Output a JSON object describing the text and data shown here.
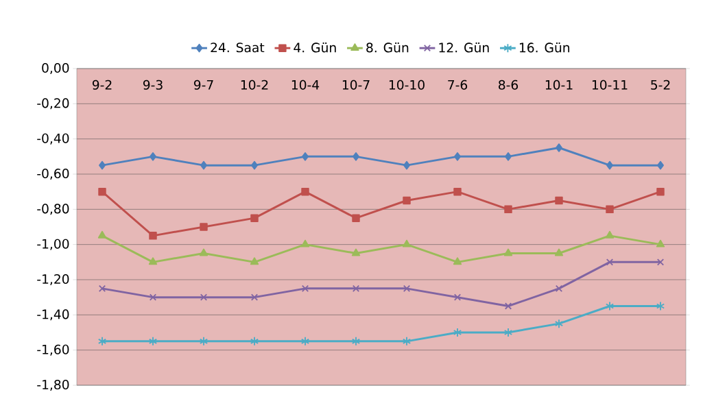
{
  "chart_data": {
    "type": "line",
    "categories": [
      "9-2",
      "9-3",
      "9-7",
      "10-2",
      "10-4",
      "10-7",
      "10-10",
      "7-6",
      "8-6",
      "10-1",
      "10-11",
      "5-2"
    ],
    "series": [
      {
        "name": "24. Saat",
        "color": "#4f81bd",
        "marker": "diamond",
        "values": [
          -0.55,
          -0.5,
          -0.55,
          -0.55,
          -0.5,
          -0.5,
          -0.55,
          -0.5,
          -0.5,
          -0.45,
          -0.55,
          -0.55
        ]
      },
      {
        "name": "4. Gün",
        "color": "#c0504d",
        "marker": "square",
        "values": [
          -0.7,
          -0.95,
          -0.9,
          -0.85,
          -0.7,
          -0.85,
          -0.75,
          -0.7,
          -0.8,
          -0.75,
          -0.8,
          -0.7
        ]
      },
      {
        "name": "8. Gün",
        "color": "#9bbb59",
        "marker": "triangle",
        "values": [
          -0.95,
          -1.1,
          -1.05,
          -1.1,
          -1.0,
          -1.05,
          -1.0,
          -1.1,
          -1.05,
          -1.05,
          -0.95,
          -1.0
        ]
      },
      {
        "name": "12. Gün",
        "color": "#8064a2",
        "marker": "cross",
        "values": [
          -1.25,
          -1.3,
          -1.3,
          -1.3,
          -1.25,
          -1.25,
          -1.25,
          -1.3,
          -1.35,
          -1.25,
          -1.1,
          -1.1
        ]
      },
      {
        "name": "16. Gün",
        "color": "#4bacc6",
        "marker": "cross",
        "values": [
          -1.55,
          -1.55,
          -1.55,
          -1.55,
          -1.55,
          -1.55,
          -1.55,
          -1.5,
          -1.5,
          -1.45,
          -1.35,
          -1.35
        ]
      }
    ],
    "ylim": [
      -1.8,
      0
    ],
    "yticks": [
      {
        "value": 0,
        "label": "0,00"
      },
      {
        "value": -0.2,
        "label": "-0,20"
      },
      {
        "value": -0.4,
        "label": "-0,40"
      },
      {
        "value": -0.6,
        "label": "-0,60"
      },
      {
        "value": -0.8,
        "label": "-0,80"
      },
      {
        "value": -1.0,
        "label": "-1,00"
      },
      {
        "value": -1.2,
        "label": "-1,20"
      },
      {
        "value": -1.4,
        "label": "-1,40"
      },
      {
        "value": -1.6,
        "label": "-1,60"
      },
      {
        "value": -1.8,
        "label": "-1,80"
      }
    ],
    "grid": "y",
    "legend": "top",
    "line_style": "solid"
  }
}
